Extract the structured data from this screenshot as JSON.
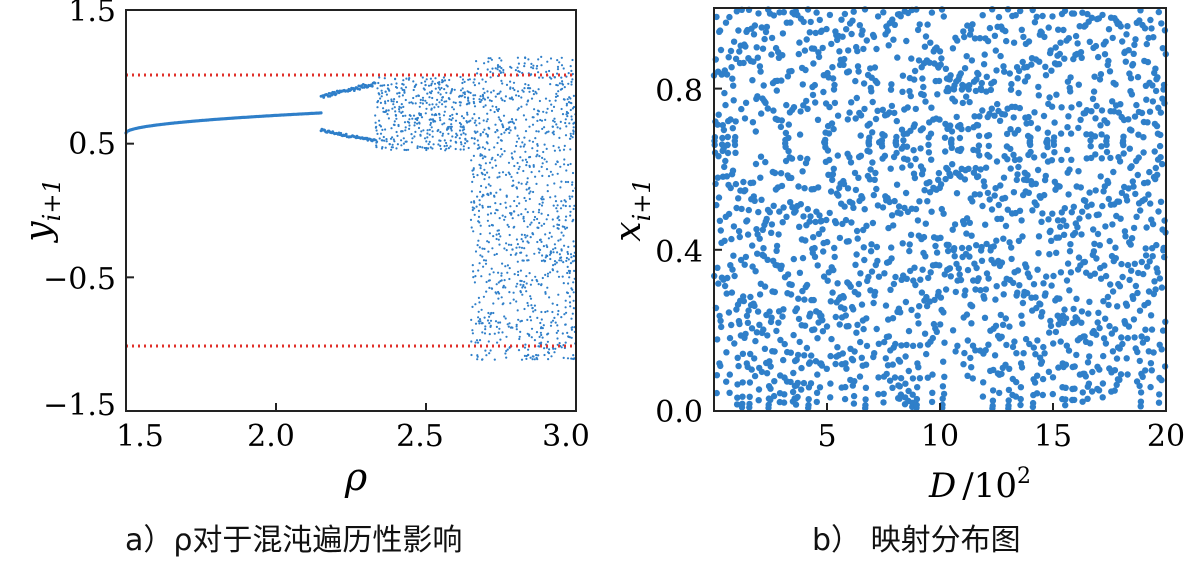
{
  "chart_data": [
    {
      "type": "scatter",
      "panel_caption": "a）ρ对于混沌遍历性影响",
      "xlabel": "ρ",
      "ylabel": "y",
      "ylabel_subscript": "i+1",
      "xlim": [
        1.5,
        3.0
      ],
      "ylim": [
        -1.5,
        1.5
      ],
      "xticks": [
        "1.5",
        "2.0",
        "2.5",
        "3.0"
      ],
      "yticks": [
        "1.5",
        "0.5",
        "−0.5",
        "−1.5"
      ],
      "reference_lines": [
        {
          "y": 1.0,
          "color": "#e0302a",
          "style": "dotted"
        },
        {
          "y": -1.0,
          "color": "#e0302a",
          "style": "dotted"
        }
      ],
      "series": [
        {
          "color": "#2f7fc9",
          "regions": [
            {
              "kind": "curve",
              "x_range": [
                1.5,
                2.15
              ],
              "y_start": 0.58,
              "y_end": 0.73
            },
            {
              "kind": "branches",
              "x_range": [
                2.15,
                2.33
              ],
              "upper": [
                0.85,
                0.95
              ],
              "lower": [
                0.6,
                0.52
              ]
            },
            {
              "kind": "scatter",
              "x_range": [
                2.33,
                2.65
              ],
              "y_range": [
                0.45,
                1.0
              ]
            },
            {
              "kind": "scatter",
              "x_range": [
                2.65,
                3.0
              ],
              "y_range": [
                -1.12,
                1.15
              ]
            }
          ]
        }
      ],
      "grid": false
    },
    {
      "type": "scatter",
      "panel_caption": "b）  映射分布图",
      "xlabel": "D",
      "xlabel_unit": "/10",
      "xlabel_exponent": "2",
      "ylabel": "x",
      "ylabel_subscript": "i+1",
      "xlim": [
        0,
        20
      ],
      "ylim": [
        0,
        1
      ],
      "xticks": [
        "5",
        "10",
        "15",
        "20"
      ],
      "yticks": [
        "0.8",
        "0.4",
        "0.0"
      ],
      "series": [
        {
          "color": "#2f7fc9",
          "count": 2000,
          "x_range": [
            0,
            20
          ],
          "y_range": [
            0,
            1
          ],
          "distribution": "uniform-chaotic"
        }
      ],
      "grid": false
    }
  ],
  "colors": {
    "points": "#2f7fc9",
    "reference": "#e0302a",
    "axis": "#222222"
  }
}
